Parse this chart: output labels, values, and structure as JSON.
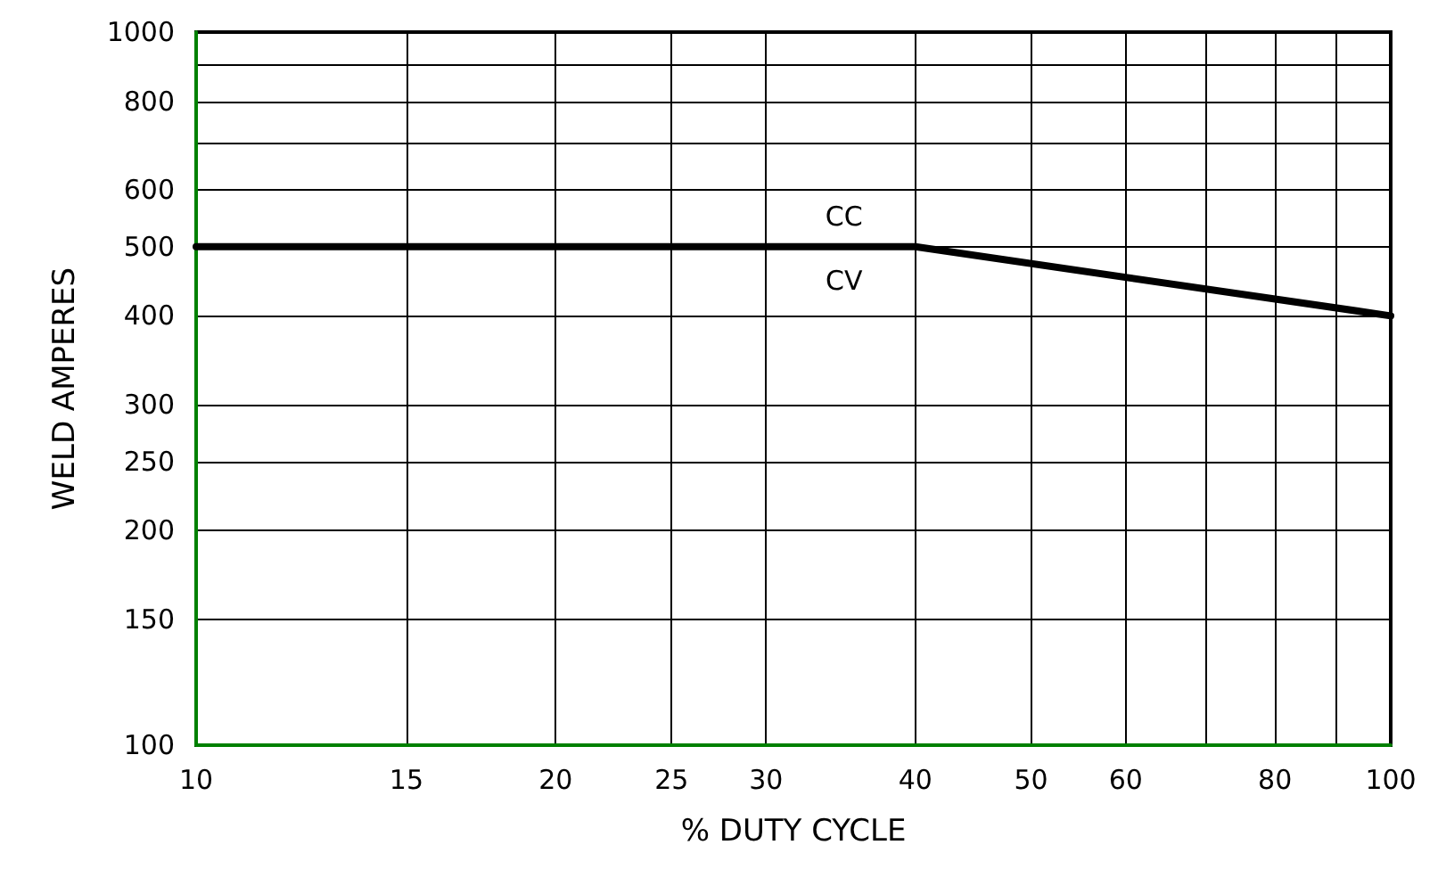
{
  "chart_data": {
    "type": "line",
    "xlabel": "% DUTY CYCLE",
    "ylabel": "WELD AMPERES",
    "x": [
      10,
      40,
      100
    ],
    "series": [
      {
        "color": "#000000",
        "values": [
          500,
          500,
          400
        ]
      }
    ],
    "log": "xy",
    "grid": true,
    "marker": "none",
    "line_style": "solid",
    "xlim": [
      10,
      100
    ],
    "xticks": [
      10,
      15,
      20,
      25,
      30,
      40,
      50,
      60,
      {
        "value": 70,
        "label": null
      },
      80,
      {
        "value": 90,
        "label": null
      },
      100
    ],
    "ylim": [
      100,
      1000
    ],
    "yticks": [
      100,
      150,
      200,
      250,
      300,
      400,
      500,
      600,
      {
        "value": 700,
        "label": null
      },
      800,
      {
        "value": 900,
        "label": null
      },
      1000
    ],
    "annotations": [
      "CC",
      "CV"
    ]
  }
}
